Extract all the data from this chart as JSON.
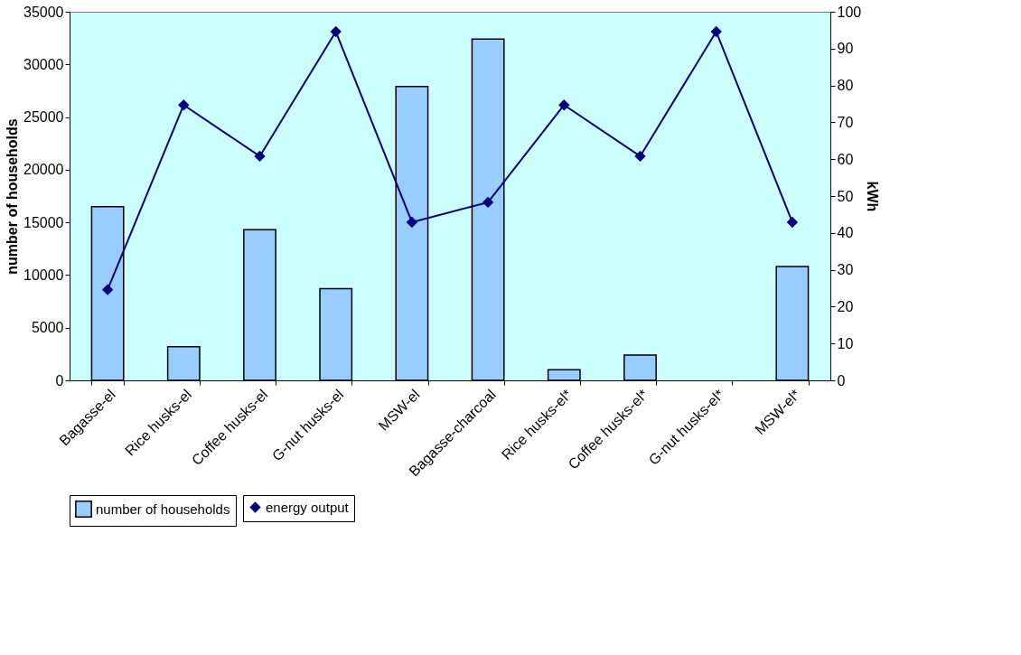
{
  "chart_data": {
    "type": "bar",
    "categories": [
      "Bagasse-el",
      "Rice husks-el",
      "Coffee husks-el",
      "G-nut husks-el",
      "MSW-el",
      "Bagasse-charcoal",
      "Rice husks-el*",
      "Coffee husks-el*",
      "G-nut husks-el*",
      "MSW-el*"
    ],
    "series": [
      {
        "name": "number of households",
        "color": "#99ccff",
        "values": [
          16500,
          3200,
          14300,
          8700,
          27900,
          32400,
          1000,
          2400,
          null,
          10800
        ]
      },
      {
        "name": "energy output",
        "type": "line",
        "axis": "y2",
        "color": "#000080",
        "marker": "diamond",
        "values": [
          24.6,
          74.7,
          60.8,
          94.6,
          42.9,
          48.3,
          74.7,
          60.8,
          94.6,
          42.9
        ]
      }
    ],
    "ylabel": "number of households",
    "y2label": "kWh",
    "ylim": [
      0,
      35000
    ],
    "yticks": [
      0,
      5000,
      10000,
      15000,
      20000,
      25000,
      30000,
      35000
    ],
    "y2lim": [
      0,
      100
    ],
    "y2ticks": [
      0,
      10,
      20,
      30,
      40,
      50,
      60,
      70,
      80,
      90,
      100
    ],
    "grid": false,
    "legend": "bottom"
  }
}
